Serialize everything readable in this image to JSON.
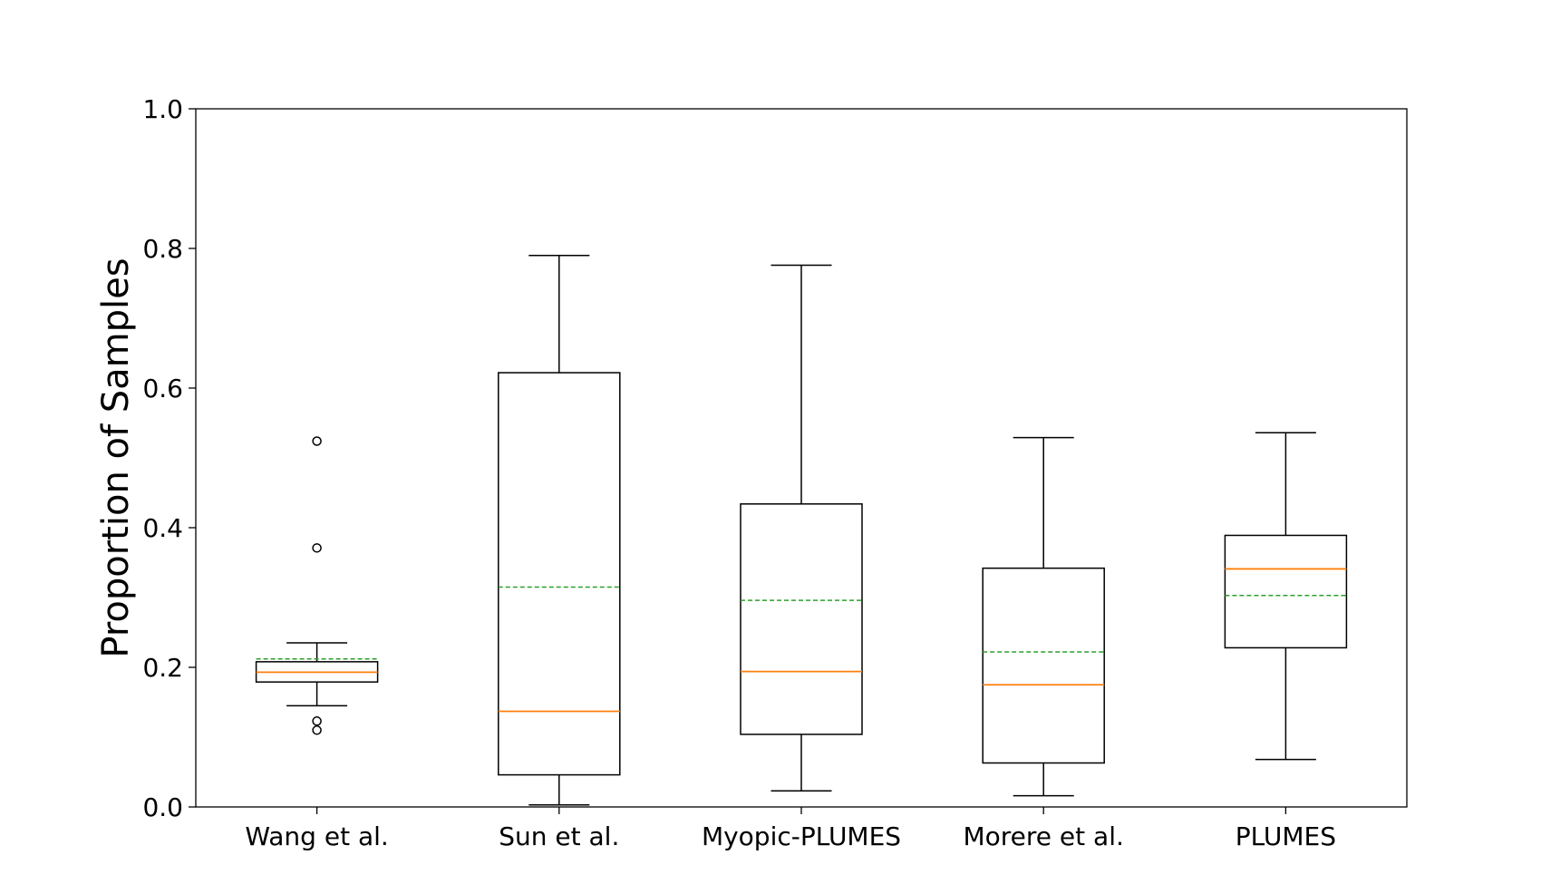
{
  "chart_data": {
    "type": "box",
    "title": "",
    "xlabel": "",
    "ylabel": "Proportion of Samples",
    "ylim": [
      0.0,
      1.0
    ],
    "yticks": [
      "0.0",
      "0.2",
      "0.4",
      "0.6",
      "0.8",
      "1.0"
    ],
    "grid": false,
    "categories": [
      "Wang et al.",
      "Sun et al.",
      "Myopic-PLUMES",
      "Morere et al.",
      "PLUMES"
    ],
    "boxes": [
      {
        "whisker_low": 0.145,
        "q1": 0.179,
        "median": 0.193,
        "q3": 0.208,
        "whisker_high": 0.235,
        "mean": 0.212,
        "outliers": [
          0.524,
          0.371,
          0.123,
          0.11
        ]
      },
      {
        "whisker_low": 0.003,
        "q1": 0.046,
        "median": 0.137,
        "q3": 0.622,
        "whisker_high": 0.79,
        "mean": 0.315,
        "outliers": []
      },
      {
        "whisker_low": 0.023,
        "q1": 0.104,
        "median": 0.194,
        "q3": 0.434,
        "whisker_high": 0.776,
        "mean": 0.296,
        "outliers": []
      },
      {
        "whisker_low": 0.016,
        "q1": 0.063,
        "median": 0.175,
        "q3": 0.342,
        "whisker_high": 0.529,
        "mean": 0.222,
        "outliers": []
      },
      {
        "whisker_low": 0.068,
        "q1": 0.228,
        "median": 0.341,
        "q3": 0.389,
        "whisker_high": 0.536,
        "mean": 0.303,
        "outliers": []
      }
    ],
    "colors": {
      "box": "#000000",
      "median": "#ff7f0e",
      "mean": "#2ca02c"
    }
  }
}
